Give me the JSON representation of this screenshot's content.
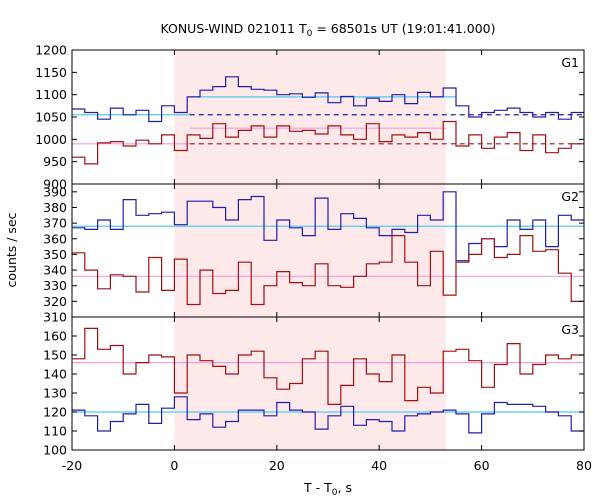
{
  "chart_data": {
    "type": "line",
    "step": true,
    "title": "KONUS-WIND 021011 T",
    "title_sub": "0",
    "title_rest": " = 68501s UT (19:01:41.000)",
    "xlabel": "T - T",
    "xlabel_sub": "0",
    "xlabel_rest": ", s",
    "ylabel": "counts / sec",
    "xlim": [
      -20,
      80
    ],
    "xticks": [
      "-20",
      "0",
      "20",
      "40",
      "60",
      "80"
    ],
    "shaded_interval": [
      0,
      53
    ],
    "colors": {
      "blue": "#1f1fa8",
      "red": "#a01010",
      "cyan": "#55c8f0",
      "pink": "#f0a0d8",
      "shade": "#fde8ea"
    },
    "panels": [
      {
        "label": "G1",
        "ylim": [
          900,
          1200
        ],
        "yticks": [
          "900",
          "950",
          "1000",
          "1050",
          "1100",
          "1150",
          "1200"
        ],
        "x": [
          -20,
          -17.5,
          -15,
          -12.5,
          -10,
          -7.5,
          -5,
          -2.5,
          0,
          2.5,
          5,
          7.5,
          10,
          12.5,
          15,
          17.5,
          20,
          22.5,
          25,
          27.5,
          30,
          32.5,
          35,
          37.5,
          40,
          42.5,
          45,
          47.5,
          50,
          52.5,
          55,
          57.5,
          60,
          62.5,
          65,
          67.5,
          70,
          72.5,
          75,
          77.5,
          80
        ],
        "series": [
          {
            "color": "blue",
            "values": [
              1068,
              1060,
              1045,
              1070,
              1055,
              1065,
              1040,
              1075,
              1060,
              1095,
              1110,
              1118,
              1140,
              1118,
              1112,
              1110,
              1100,
              1102,
              1094,
              1104,
              1082,
              1096,
              1075,
              1092,
              1085,
              1100,
              1080,
              1105,
              1095,
              1115,
              1075,
              1050,
              1060,
              1065,
              1070,
              1060,
              1050,
              1060,
              1045,
              1060
            ]
          },
          {
            "color": "red",
            "values": [
              960,
              945,
              992,
              995,
              985,
              998,
              990,
              1010,
              975,
              1010,
              1002,
              1035,
              1005,
              1020,
              1030,
              1005,
              1030,
              1018,
              1020,
              1012,
              1030,
              1010,
              1000,
              1035,
              995,
              1010,
              1005,
              1015,
              1000,
              1040,
              985,
              1010,
              980,
              1005,
              1015,
              975,
              1010,
              970,
              980,
              990
            ]
          }
        ],
        "fits": [
          {
            "color": "cyan",
            "dash": false,
            "from": -20,
            "to": 3,
            "value": 1055
          },
          {
            "color": "cyan",
            "dash": false,
            "from": 3,
            "to": 55,
            "value": 1095
          },
          {
            "color": "blue",
            "dash": true,
            "from": 3,
            "to": 80,
            "value": 1055
          },
          {
            "color": "pink",
            "dash": false,
            "from": -20,
            "to": 3,
            "value": 990
          },
          {
            "color": "pink",
            "dash": false,
            "from": 3,
            "to": 53,
            "value": 1025
          },
          {
            "color": "red",
            "dash": true,
            "from": 3,
            "to": 80,
            "value": 990
          }
        ]
      },
      {
        "label": "G2",
        "ylim": [
          310,
          395
        ],
        "yticks": [
          "310",
          "320",
          "330",
          "340",
          "350",
          "360",
          "370",
          "380",
          "390"
        ],
        "x": [
          -20,
          -17.5,
          -15,
          -12.5,
          -10,
          -7.5,
          -5,
          -2.5,
          0,
          2.5,
          5,
          7.5,
          10,
          12.5,
          15,
          17.5,
          20,
          22.5,
          25,
          27.5,
          30,
          32.5,
          35,
          37.5,
          40,
          42.5,
          45,
          47.5,
          50,
          52.5,
          55,
          57.5,
          60,
          62.5,
          65,
          67.5,
          70,
          72.5,
          75,
          77.5,
          80
        ],
        "series": [
          {
            "color": "blue",
            "values": [
              367,
              366,
              372,
              366,
              385,
              375,
              376,
              377,
              369,
              384,
              384,
              380,
              372,
              385,
              387,
              359,
              372,
              367,
              362,
              386,
              366,
              376,
              373,
              367,
              362,
              366,
              364,
              375,
              372,
              390,
              346,
              357,
              360,
              355,
              372,
              366,
              372,
              355,
              375,
              372
            ]
          },
          {
            "color": "red",
            "values": [
              351,
              340,
              328,
              337,
              336,
              326,
              348,
              327,
              347,
              318,
              340,
              325,
              327,
              345,
              318,
              330,
              339,
              332,
              330,
              344,
              330,
              329,
              336,
              344,
              345,
              362,
              345,
              330,
              352,
              324,
              345,
              350,
              360,
              348,
              350,
              362,
              352,
              353,
              338,
              320
            ]
          }
        ],
        "fits": [
          {
            "color": "cyan",
            "dash": false,
            "from": -20,
            "to": 80,
            "value": 368
          },
          {
            "color": "pink",
            "dash": false,
            "from": -20,
            "to": 80,
            "value": 336
          }
        ]
      },
      {
        "label": "G3",
        "ylim": [
          100,
          170
        ],
        "yticks": [
          "100",
          "110",
          "120",
          "130",
          "140",
          "150",
          "160"
        ],
        "x": [
          -20,
          -17.5,
          -15,
          -12.5,
          -10,
          -7.5,
          -5,
          -2.5,
          0,
          2.5,
          5,
          7.5,
          10,
          12.5,
          15,
          17.5,
          20,
          22.5,
          25,
          27.5,
          30,
          32.5,
          35,
          37.5,
          40,
          42.5,
          45,
          47.5,
          50,
          52.5,
          55,
          57.5,
          60,
          62.5,
          65,
          67.5,
          70,
          72.5,
          75,
          77.5,
          80
        ],
        "series": [
          {
            "color": "red",
            "values": [
              148,
              164,
              153,
              155,
              140,
              146,
              150,
              149,
              130,
              150,
              147,
              144,
              140,
              150,
              152,
              138,
              132,
              135,
              148,
              152,
              124,
              134,
              148,
              140,
              136,
              150,
              126,
              133,
              130,
              152,
              153,
              147,
              133,
              145,
              156,
              140,
              145,
              150,
              148,
              150
            ]
          },
          {
            "color": "blue",
            "values": [
              121,
              118,
              110,
              115,
              119,
              124,
              114,
              122,
              128,
              116,
              119,
              112,
              115,
              121,
              121,
              118,
              125,
              121,
              120,
              111,
              118,
              123,
              113,
              116,
              115,
              110,
              118,
              119,
              120,
              121,
              119,
              109,
              119,
              125,
              124,
              124,
              123,
              120,
              118,
              110
            ]
          }
        ],
        "fits": [
          {
            "color": "cyan",
            "dash": false,
            "from": -20,
            "to": 80,
            "value": 120
          },
          {
            "color": "pink",
            "dash": false,
            "from": -20,
            "to": 80,
            "value": 146
          }
        ]
      }
    ]
  }
}
